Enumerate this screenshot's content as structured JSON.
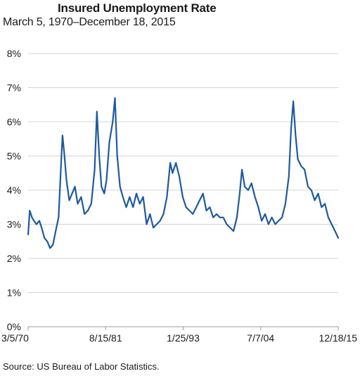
{
  "chart_data": {
    "type": "line",
    "title": "Insured Unemployment Rate",
    "subtitle": "March 5, 1970–December 18, 2015",
    "source": "Source: US Bureau of Labor Statistics.",
    "xlabel": "",
    "ylabel": "",
    "x_range": [
      "1970-03-05",
      "2015-12-18"
    ],
    "ylim": [
      0,
      8
    ],
    "y_ticks": [
      "0%",
      "1%",
      "2%",
      "3%",
      "4%",
      "5%",
      "6%",
      "7%",
      "8%"
    ],
    "x_ticks": [
      {
        "label": "3/5/70",
        "date": "1970-03-05"
      },
      {
        "label": "8/15/81",
        "date": "1981-08-15"
      },
      {
        "label": "1/25/93",
        "date": "1993-01-25"
      },
      {
        "label": "7/7/04",
        "date": "2004-07-07"
      },
      {
        "label": "12/18/15",
        "date": "2015-12-18"
      }
    ],
    "grid": true,
    "legend": "none",
    "line_color": "#1f5a9c",
    "series": [
      {
        "points": [
          [
            "1970-03-05",
            2.7
          ],
          [
            "1970-06-01",
            3.4
          ],
          [
            "1970-10-01",
            3.2
          ],
          [
            "1971-01-15",
            3.1
          ],
          [
            "1971-06-01",
            3.0
          ],
          [
            "1971-11-01",
            3.1
          ],
          [
            "1972-03-01",
            2.9
          ],
          [
            "1972-08-01",
            2.6
          ],
          [
            "1973-01-01",
            2.5
          ],
          [
            "1973-06-01",
            2.3
          ],
          [
            "1973-11-01",
            2.4
          ],
          [
            "1974-04-01",
            2.8
          ],
          [
            "1974-09-01",
            3.2
          ],
          [
            "1975-01-01",
            4.6
          ],
          [
            "1975-04-01",
            5.6
          ],
          [
            "1975-07-01",
            5.1
          ],
          [
            "1975-11-01",
            4.3
          ],
          [
            "1976-04-01",
            3.7
          ],
          [
            "1976-09-01",
            3.9
          ],
          [
            "1977-02-01",
            4.1
          ],
          [
            "1977-07-01",
            3.6
          ],
          [
            "1978-01-01",
            3.8
          ],
          [
            "1978-07-01",
            3.3
          ],
          [
            "1979-01-01",
            3.4
          ],
          [
            "1979-07-01",
            3.6
          ],
          [
            "1980-01-01",
            4.6
          ],
          [
            "1980-05-01",
            6.3
          ],
          [
            "1980-09-01",
            5.0
          ],
          [
            "1981-01-01",
            4.1
          ],
          [
            "1981-06-01",
            3.9
          ],
          [
            "1981-10-01",
            4.3
          ],
          [
            "1982-03-01",
            5.4
          ],
          [
            "1982-09-01",
            6.0
          ],
          [
            "1983-01-01",
            6.7
          ],
          [
            "1983-05-01",
            5.0
          ],
          [
            "1983-10-01",
            4.1
          ],
          [
            "1984-03-01",
            3.8
          ],
          [
            "1984-09-01",
            3.5
          ],
          [
            "1985-03-01",
            3.8
          ],
          [
            "1985-09-01",
            3.5
          ],
          [
            "1986-03-01",
            3.9
          ],
          [
            "1986-09-01",
            3.6
          ],
          [
            "1987-03-01",
            3.8
          ],
          [
            "1987-09-01",
            3.0
          ],
          [
            "1988-03-01",
            3.3
          ],
          [
            "1988-09-01",
            2.9
          ],
          [
            "1989-03-01",
            3.0
          ],
          [
            "1989-09-01",
            3.1
          ],
          [
            "1990-03-01",
            3.3
          ],
          [
            "1990-09-01",
            3.8
          ],
          [
            "1991-03-01",
            4.8
          ],
          [
            "1991-07-01",
            4.5
          ],
          [
            "1992-01-01",
            4.8
          ],
          [
            "1992-07-01",
            4.4
          ],
          [
            "1993-01-01",
            3.8
          ],
          [
            "1993-07-01",
            3.5
          ],
          [
            "1994-01-01",
            3.4
          ],
          [
            "1994-07-01",
            3.3
          ],
          [
            "1995-01-01",
            3.5
          ],
          [
            "1995-07-01",
            3.7
          ],
          [
            "1996-01-01",
            3.9
          ],
          [
            "1996-07-01",
            3.4
          ],
          [
            "1997-01-01",
            3.5
          ],
          [
            "1997-07-01",
            3.2
          ],
          [
            "1998-01-01",
            3.3
          ],
          [
            "1998-07-01",
            3.2
          ],
          [
            "1999-01-01",
            3.2
          ],
          [
            "1999-07-01",
            3.0
          ],
          [
            "2000-01-01",
            2.9
          ],
          [
            "2000-07-01",
            2.8
          ],
          [
            "2001-01-01",
            3.2
          ],
          [
            "2001-06-01",
            3.9
          ],
          [
            "2001-10-01",
            4.6
          ],
          [
            "2002-03-01",
            4.1
          ],
          [
            "2002-09-01",
            4.0
          ],
          [
            "2003-03-01",
            4.2
          ],
          [
            "2003-09-01",
            3.8
          ],
          [
            "2004-03-01",
            3.5
          ],
          [
            "2004-09-01",
            3.1
          ],
          [
            "2005-03-01",
            3.3
          ],
          [
            "2005-09-01",
            3.0
          ],
          [
            "2006-03-01",
            3.2
          ],
          [
            "2006-09-01",
            3.0
          ],
          [
            "2007-03-01",
            3.1
          ],
          [
            "2007-09-01",
            3.2
          ],
          [
            "2008-03-01",
            3.6
          ],
          [
            "2008-09-01",
            4.4
          ],
          [
            "2009-01-01",
            5.8
          ],
          [
            "2009-05-01",
            6.6
          ],
          [
            "2009-09-01",
            5.6
          ],
          [
            "2010-01-01",
            4.9
          ],
          [
            "2010-07-01",
            4.7
          ],
          [
            "2011-01-01",
            4.6
          ],
          [
            "2011-07-01",
            4.1
          ],
          [
            "2012-01-01",
            4.0
          ],
          [
            "2012-07-01",
            3.7
          ],
          [
            "2013-01-01",
            3.9
          ],
          [
            "2013-07-01",
            3.5
          ],
          [
            "2014-01-01",
            3.6
          ],
          [
            "2014-07-01",
            3.2
          ],
          [
            "2015-01-01",
            3.0
          ],
          [
            "2015-07-01",
            2.8
          ],
          [
            "2015-12-18",
            2.6
          ]
        ]
      }
    ]
  }
}
